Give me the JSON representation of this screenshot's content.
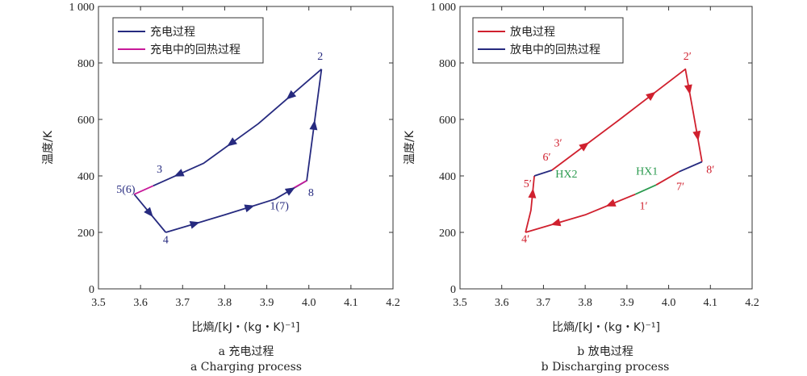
{
  "chart_data": [
    {
      "type": "line",
      "caption_cn": "a 充电过程",
      "caption_en": "a Charging process",
      "xlabel": "比熵/[kJ・(kg・K)⁻¹]",
      "ylabel": "温度/K",
      "xlim": [
        3.5,
        4.2
      ],
      "ylim": [
        0,
        1000
      ],
      "xticks": [
        "3.5",
        "3.6",
        "3.7",
        "3.8",
        "3.9",
        "4.0",
        "4.1",
        "4.2"
      ],
      "yticks": [
        "0",
        "200",
        "400",
        "600",
        "800",
        "1 000"
      ],
      "legend_position": "top-left",
      "series": [
        {
          "name": "充电过程",
          "color": "#262a7f",
          "segments": [
            [
              [
                3.66,
                200
              ],
              [
                3.8,
                262
              ],
              [
                3.92,
                318
              ],
              [
                3.995,
                383
              ],
              [
                4.03,
                778
              ]
            ],
            [
              [
                4.03,
                778
              ],
              [
                3.88,
                585
              ],
              [
                3.75,
                445
              ],
              [
                3.63,
                365
              ]
            ],
            [
              [
                3.585,
                335
              ],
              [
                3.66,
                200
              ]
            ]
          ]
        },
        {
          "name": "充电中的回热过程",
          "color": "#c8199a",
          "segments": [
            [
              [
                3.63,
                365
              ],
              [
                3.585,
                335
              ]
            ],
            [
              [
                3.955,
                350
              ],
              [
                3.995,
                383
              ]
            ]
          ]
        }
      ],
      "point_labels": [
        {
          "text": "2",
          "x": 4.027,
          "y": 812
        },
        {
          "text": "3",
          "x": 3.645,
          "y": 412
        },
        {
          "text": "5(6)",
          "x": 3.565,
          "y": 340
        },
        {
          "text": "4",
          "x": 3.66,
          "y": 162
        },
        {
          "text": "1(7)",
          "x": 3.93,
          "y": 282
        },
        {
          "text": "8",
          "x": 4.005,
          "y": 328
        }
      ],
      "label_color": "#262a7f"
    },
    {
      "type": "line",
      "caption_cn": "b 放电过程",
      "caption_en": "b Discharging process",
      "xlabel": "比熵/[kJ・(kg・K)⁻¹]",
      "ylabel": "温度/K",
      "xlim": [
        3.5,
        4.2
      ],
      "ylim": [
        0,
        1000
      ],
      "xticks": [
        "3.5",
        "3.6",
        "3.7",
        "3.8",
        "3.9",
        "4.0",
        "4.1",
        "4.2"
      ],
      "yticks": [
        "0",
        "200",
        "400",
        "600",
        "800",
        "1 000"
      ],
      "legend_position": "top-left",
      "series": [
        {
          "name": "放电过程",
          "color": "#d0202e",
          "segments": [
            [
              [
                3.657,
                200
              ],
              [
                3.67,
                278
              ],
              [
                3.678,
                400
              ]
            ],
            [
              [
                3.72,
                420
              ],
              [
                3.88,
                597
              ],
              [
                4.04,
                778
              ],
              [
                4.058,
                632
              ],
              [
                4.08,
                450
              ]
            ],
            [
              [
                4.025,
                415
              ],
              [
                3.97,
                368
              ]
            ],
            [
              [
                3.92,
                335
              ],
              [
                3.8,
                262
              ],
              [
                3.657,
                200
              ]
            ]
          ]
        },
        {
          "name": "放电中的回热过程",
          "color": "#262a7f",
          "segments": [
            [
              [
                3.678,
                400
              ],
              [
                3.72,
                420
              ]
            ],
            [
              [
                4.08,
                450
              ],
              [
                4.025,
                415
              ]
            ]
          ]
        },
        {
          "name": "",
          "color": "#2a9a4e",
          "segments": [
            [
              [
                3.97,
                368
              ],
              [
                3.92,
                335
              ]
            ]
          ]
        }
      ],
      "point_labels": [
        {
          "text": "2′",
          "x": 4.045,
          "y": 812,
          "color": "#d0202e"
        },
        {
          "text": "3′",
          "x": 3.735,
          "y": 505,
          "color": "#d0202e"
        },
        {
          "text": "6′",
          "x": 3.708,
          "y": 455,
          "color": "#d0202e"
        },
        {
          "text": "5′",
          "x": 3.662,
          "y": 360,
          "color": "#d0202e"
        },
        {
          "text": "4′",
          "x": 3.657,
          "y": 165,
          "color": "#d0202e"
        },
        {
          "text": "1′",
          "x": 3.94,
          "y": 282,
          "color": "#d0202e"
        },
        {
          "text": "7′",
          "x": 4.028,
          "y": 350,
          "color": "#d0202e"
        },
        {
          "text": "8′",
          "x": 4.1,
          "y": 410,
          "color": "#d0202e"
        },
        {
          "text": "HX2",
          "x": 3.755,
          "y": 395,
          "color": "#2a9a4e"
        },
        {
          "text": "HX1",
          "x": 3.948,
          "y": 405,
          "color": "#2a9a4e"
        }
      ]
    }
  ]
}
